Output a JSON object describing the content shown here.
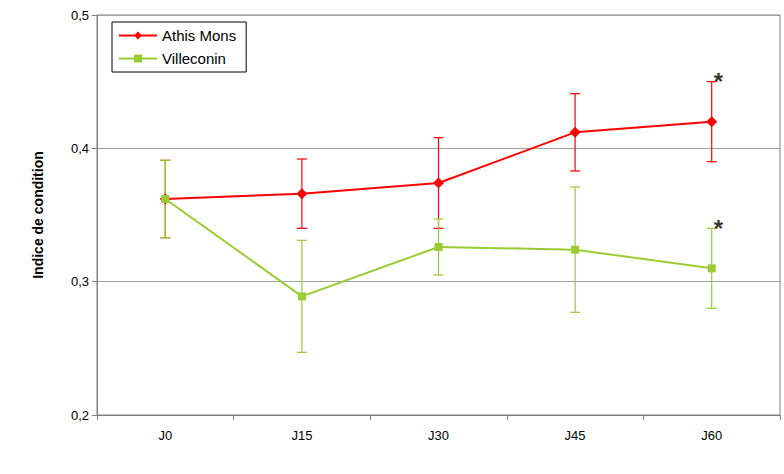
{
  "chart_data": {
    "type": "line",
    "y_label": "Indice de condition",
    "categories": [
      "J0",
      "J15",
      "J30",
      "J45",
      "J60"
    ],
    "series": [
      {
        "name": "Athis Mons",
        "color": "#ff0000",
        "marker": "diamond",
        "values": [
          0.362,
          0.366,
          0.374,
          0.412,
          0.42
        ],
        "error": [
          0.029,
          0.026,
          0.034,
          0.029,
          0.03
        ]
      },
      {
        "name": "Villeconin",
        "color": "#99cc33",
        "marker": "square",
        "values": [
          0.362,
          0.289,
          0.326,
          0.324,
          0.31
        ],
        "error": [
          0.029,
          0.042,
          0.021,
          0.047,
          0.03
        ]
      }
    ],
    "ylim": [
      0.2,
      0.5
    ],
    "yticks": [
      {
        "value": 0.2,
        "label": "0,2"
      },
      {
        "value": 0.3,
        "label": "0,3"
      },
      {
        "value": 0.4,
        "label": "0,4"
      },
      {
        "value": 0.5,
        "label": "0,5"
      }
    ],
    "grid": true,
    "legend": "upper left",
    "annotations": [
      {
        "text": "*",
        "x": "J60",
        "y": 0.45
      },
      {
        "text": "*",
        "x": "J60",
        "y": 0.34
      }
    ]
  }
}
